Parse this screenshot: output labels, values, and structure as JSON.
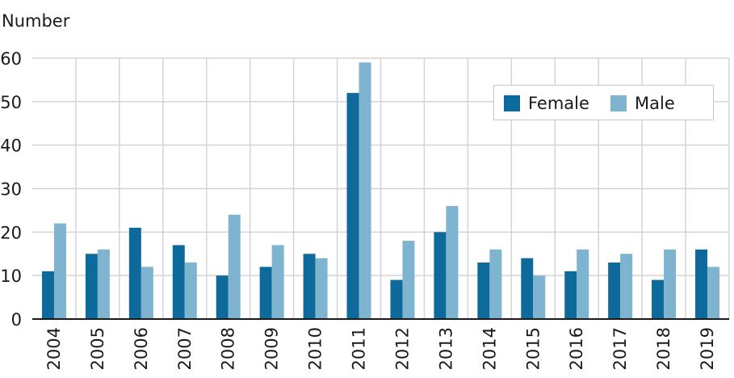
{
  "chart_data": {
    "type": "bar",
    "ylabel": "Number",
    "ylim": [
      0,
      60
    ],
    "yticks": [
      0,
      10,
      20,
      30,
      40,
      50,
      60
    ],
    "grid": true,
    "legend_position": "top-right",
    "categories": [
      "2004",
      "2005",
      "2006",
      "2007",
      "2008",
      "2009",
      "2010",
      "2011",
      "2012",
      "2013",
      "2014",
      "2015",
      "2016",
      "2017",
      "2018",
      "2019"
    ],
    "series": [
      {
        "name": "Female",
        "color": "#0e6a9b",
        "values": [
          11,
          15,
          21,
          17,
          10,
          12,
          15,
          52,
          9,
          20,
          13,
          14,
          11,
          13,
          9,
          16
        ]
      },
      {
        "name": "Male",
        "color": "#7fb4d0",
        "values": [
          22,
          16,
          12,
          13,
          24,
          17,
          14,
          59,
          18,
          26,
          16,
          10,
          16,
          15,
          16,
          12
        ]
      }
    ]
  }
}
